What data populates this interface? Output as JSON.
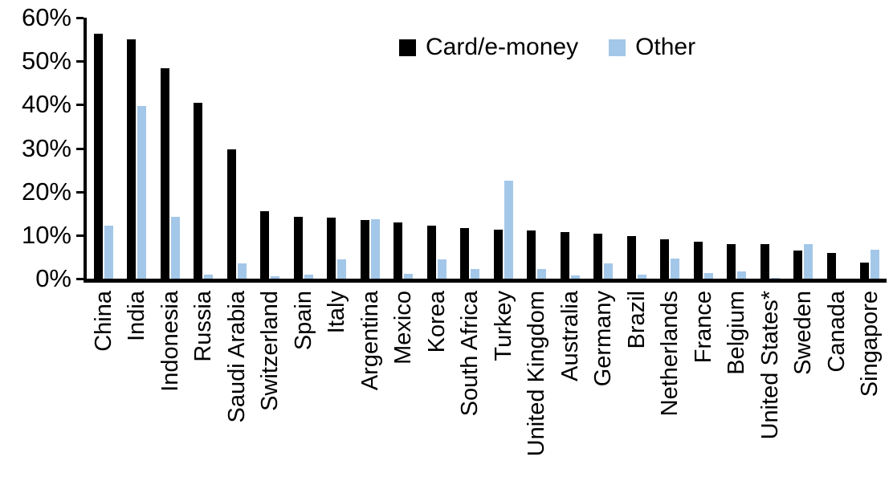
{
  "chart_data": {
    "type": "bar",
    "title": "",
    "xlabel": "",
    "ylabel": "",
    "ylim": [
      0,
      60
    ],
    "yticks": [
      {
        "value": 0,
        "label": "0%"
      },
      {
        "value": 10,
        "label": "10%"
      },
      {
        "value": 20,
        "label": "20%"
      },
      {
        "value": 30,
        "label": "30%"
      },
      {
        "value": 40,
        "label": "40%"
      },
      {
        "value": 50,
        "label": "50%"
      },
      {
        "value": 60,
        "label": "60%"
      }
    ],
    "grid": false,
    "legend_position": "top",
    "categories": [
      "China",
      "India",
      "Indonesia",
      "Russia",
      "Saudi Arabia",
      "Switzerland",
      "Spain",
      "Italy",
      "Argentina",
      "Mexico",
      "Korea",
      "South Africa",
      "Turkey",
      "United Kingdom",
      "Australia",
      "Germany",
      "Brazil",
      "Netherlands",
      "France",
      "Belgium",
      "United States*",
      "Sweden",
      "Canada",
      "Singapore"
    ],
    "series": [
      {
        "name": "Card/e-money",
        "color": "#000000",
        "values": [
          56.3,
          55.0,
          48.4,
          40.5,
          29.8,
          15.5,
          14.2,
          14.0,
          13.4,
          12.9,
          12.1,
          11.7,
          11.3,
          11.0,
          10.7,
          10.4,
          9.8,
          9.0,
          8.5,
          8.0,
          7.9,
          6.5,
          5.9,
          3.7
        ]
      },
      {
        "name": "Other",
        "color": "#A3C7E8",
        "values": [
          12.1,
          39.7,
          14.3,
          0.9,
          3.6,
          0.6,
          0.9,
          4.5,
          13.7,
          1.2,
          4.5,
          2.3,
          22.5,
          2.2,
          0.8,
          3.6,
          1.0,
          4.7,
          1.3,
          1.7,
          0.2,
          8.0,
          0.0,
          6.6
        ]
      }
    ],
    "colors": {
      "axis": "#000000",
      "background": "#ffffff",
      "card_series": "#000000",
      "other_series": "#A3C7E8"
    }
  }
}
